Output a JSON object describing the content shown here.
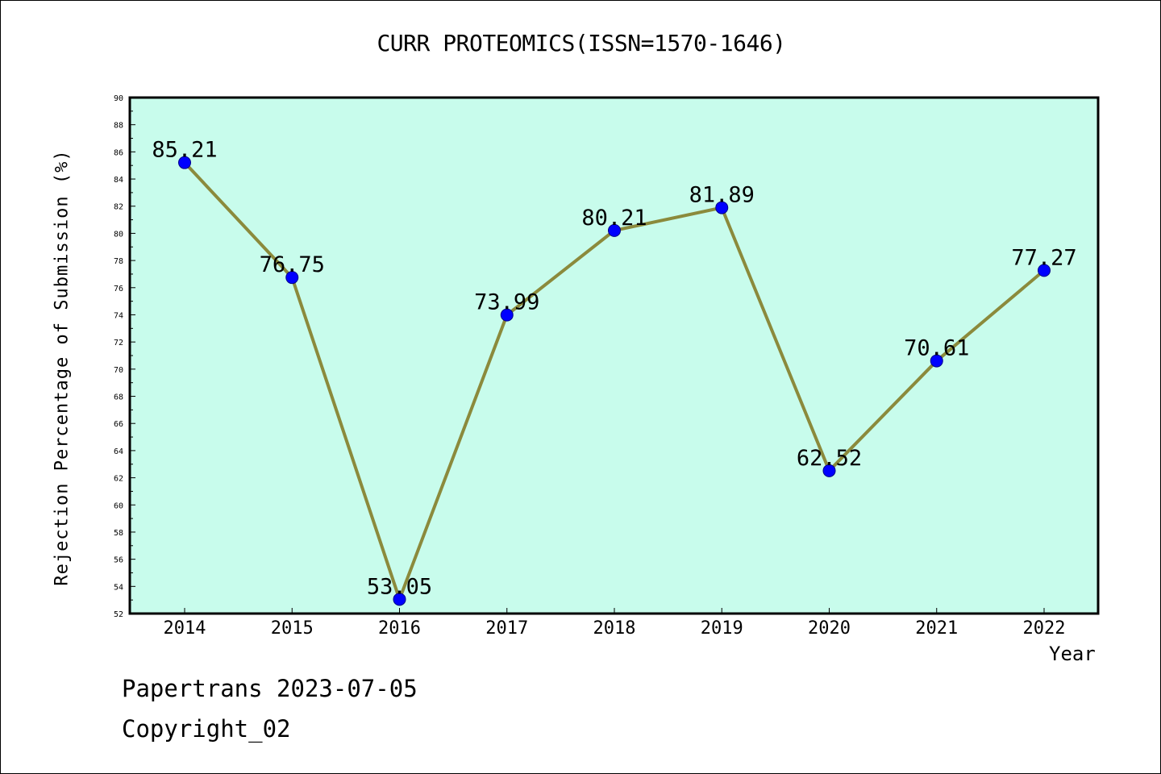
{
  "chart_data": {
    "type": "line",
    "title": "CURR PROTEOMICS(ISSN=1570-1646)",
    "xlabel": "Year",
    "ylabel": "Rejection Percentage of Submission (%)",
    "categories": [
      "2014",
      "2015",
      "2016",
      "2017",
      "2018",
      "2019",
      "2020",
      "2021",
      "2022"
    ],
    "series": [
      {
        "values": [
          85.21,
          76.75,
          53.05,
          73.99,
          80.21,
          81.89,
          62.52,
          70.61,
          77.27
        ],
        "labels": [
          "85.21",
          "76.75",
          "53.05",
          "73.99",
          "80.21",
          "81.89",
          "62.52",
          "70.61",
          "77.27"
        ]
      }
    ],
    "ylim": [
      52,
      90
    ],
    "yticks": [
      "52",
      "54",
      "56",
      "58",
      "60",
      "62",
      "64",
      "66",
      "68",
      "70",
      "72",
      "74",
      "76",
      "78",
      "80",
      "82",
      "84",
      "86",
      "88",
      "90"
    ],
    "grid": false,
    "colors": {
      "plot_background": "#c8fcec",
      "line": "#8b8a3c",
      "marker": "#0000ff"
    }
  },
  "footer": {
    "line1": "Papertrans 2023-07-05",
    "line2": "Copyright_02"
  }
}
